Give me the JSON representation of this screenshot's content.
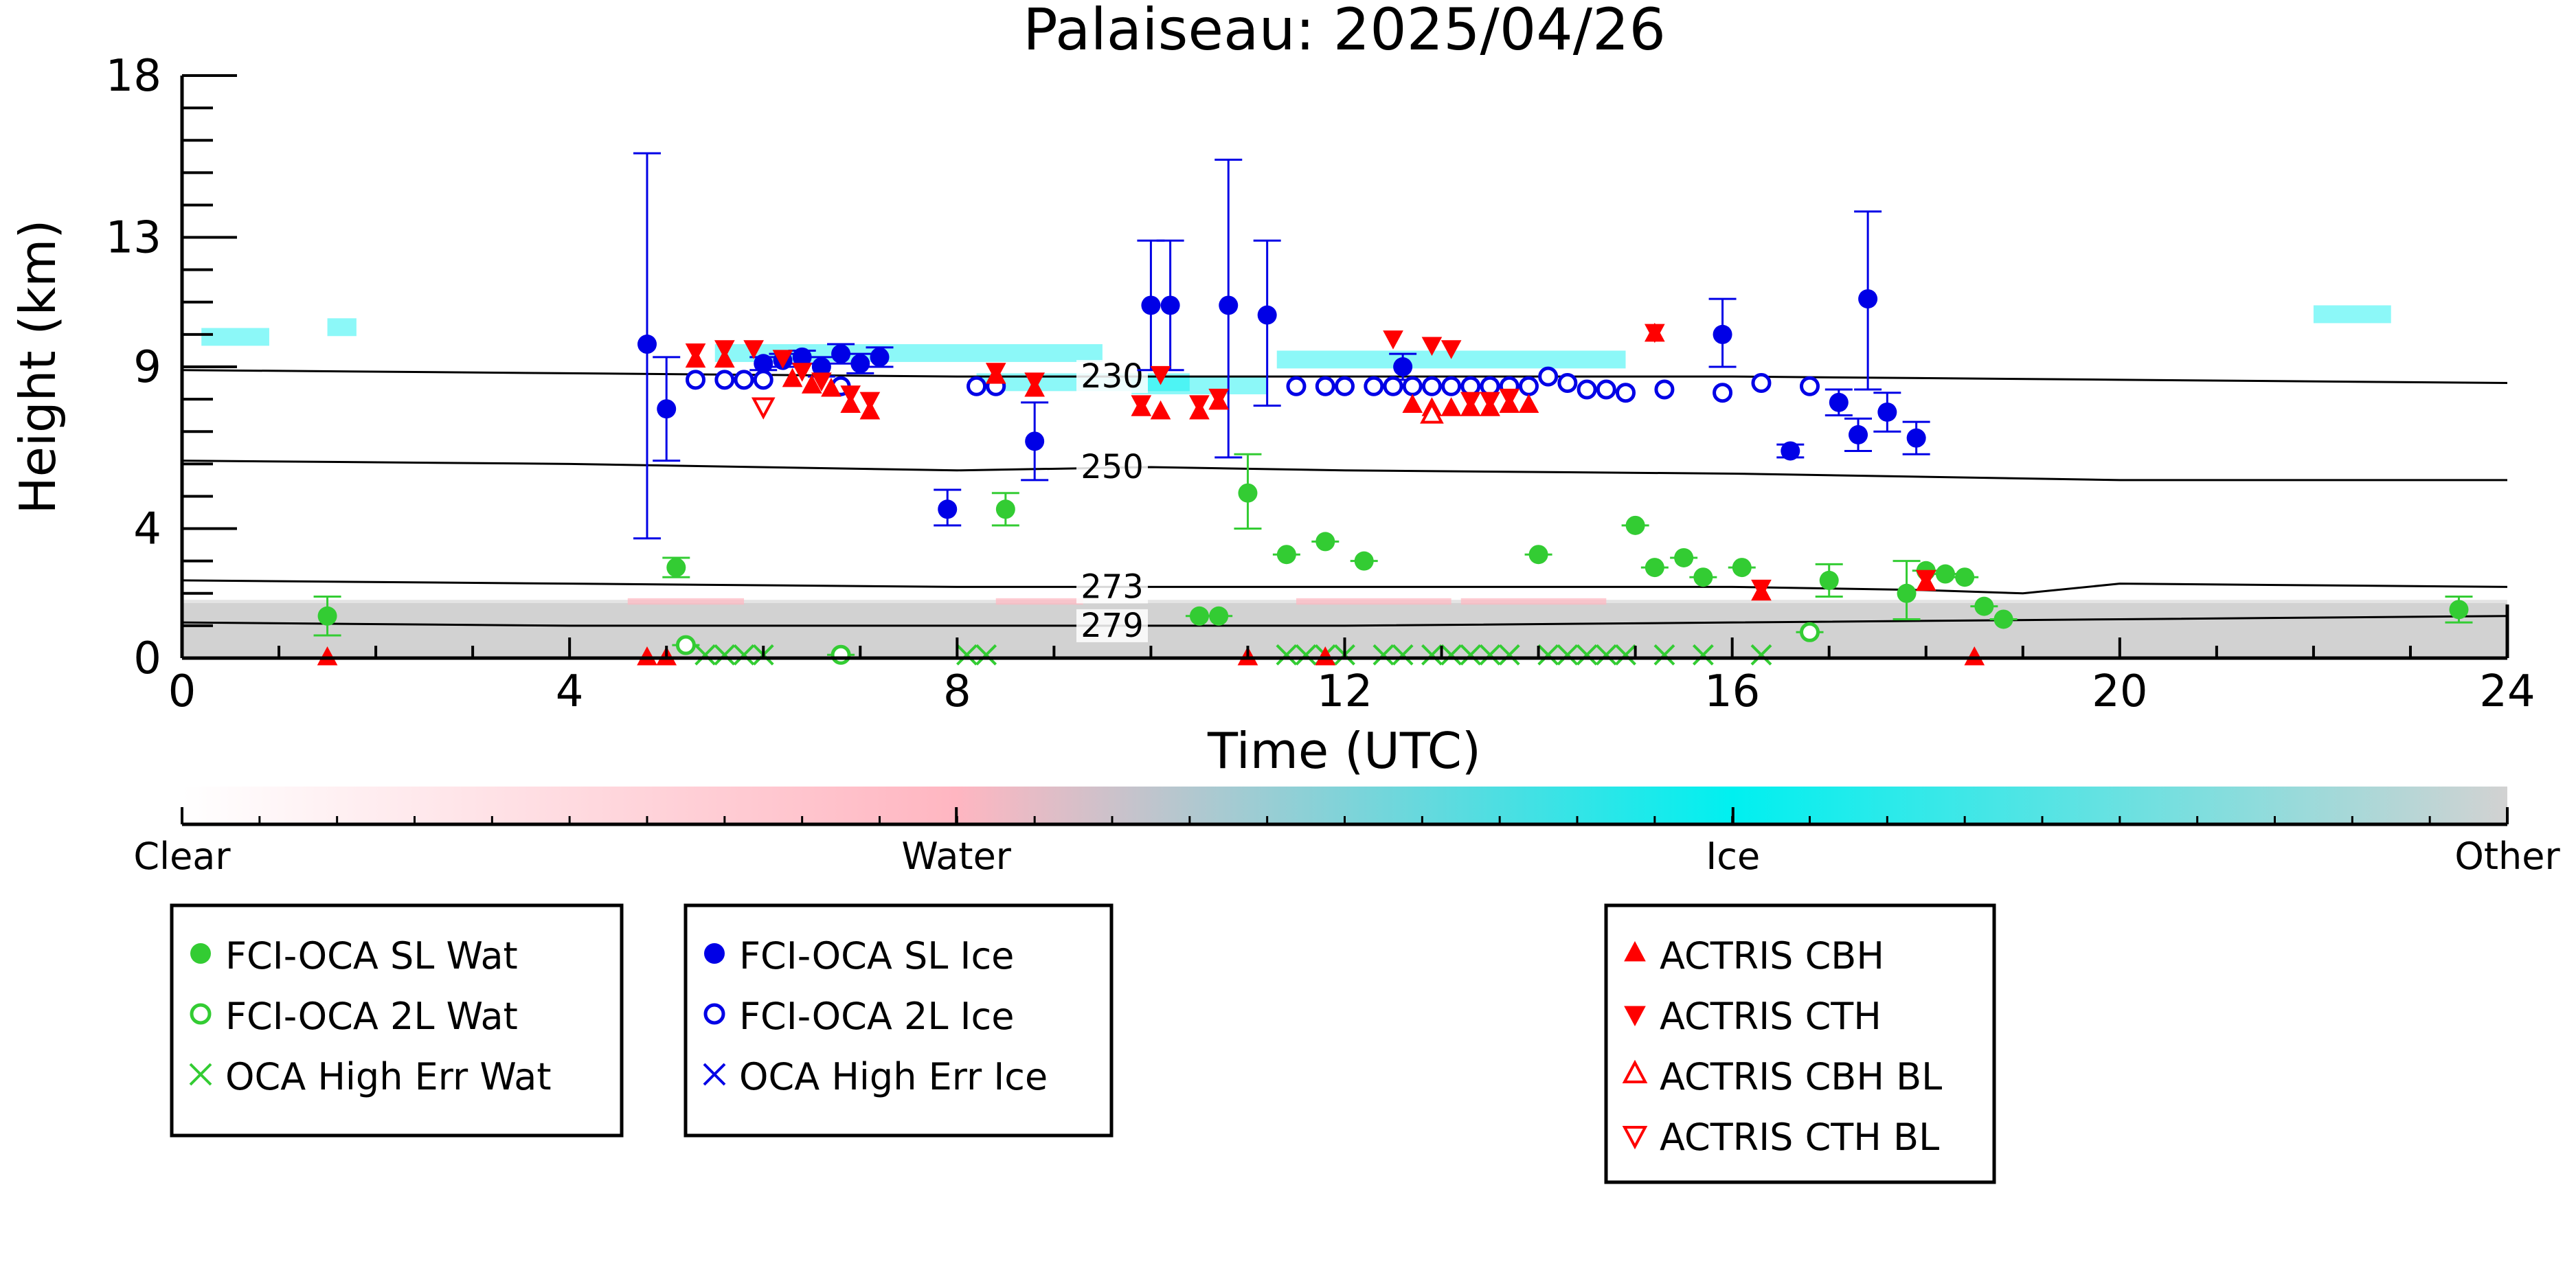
{
  "chart_data": {
    "type": "scatter",
    "title": "Palaiseau: 2025/04/26",
    "xlabel": "Time (UTC)",
    "ylabel": "Height (km)",
    "xlim": [
      0,
      24
    ],
    "ylim": [
      0,
      18
    ],
    "xticks": [
      0,
      4,
      8,
      12,
      16,
      20,
      24
    ],
    "yticks": [
      0,
      4,
      9,
      13,
      18
    ],
    "colors": {
      "green": "#33cc33",
      "blue": "#0000e6",
      "red": "#ff0000",
      "cyan": "#00f0f0",
      "gray": "#d2d2d2",
      "pink": "#ffb6c1"
    },
    "colorbar": {
      "labels": [
        "Clear",
        "Water",
        "Ice",
        "Other"
      ],
      "positions": [
        0,
        0.333,
        0.667,
        1
      ]
    },
    "contours": [
      {
        "label": "230",
        "points": [
          [
            0,
            8.9
          ],
          [
            4,
            8.8
          ],
          [
            8,
            8.7
          ],
          [
            10,
            8.7
          ],
          [
            12,
            8.7
          ],
          [
            16,
            8.7
          ],
          [
            20,
            8.6
          ],
          [
            24,
            8.5
          ]
        ]
      },
      {
        "label": "250",
        "points": [
          [
            0,
            6.1
          ],
          [
            4,
            6.0
          ],
          [
            8,
            5.8
          ],
          [
            10,
            5.9
          ],
          [
            12,
            5.8
          ],
          [
            16,
            5.7
          ],
          [
            20,
            5.5
          ],
          [
            24,
            5.5
          ]
        ]
      },
      {
        "label": "273",
        "points": [
          [
            0,
            2.4
          ],
          [
            4,
            2.3
          ],
          [
            8,
            2.2
          ],
          [
            10,
            2.2
          ],
          [
            12,
            2.2
          ],
          [
            16,
            2.2
          ],
          [
            18,
            2.1
          ],
          [
            19,
            2.0
          ],
          [
            20,
            2.3
          ],
          [
            24,
            2.2
          ]
        ]
      },
      {
        "label": "279",
        "points": [
          [
            0,
            1.1
          ],
          [
            4,
            1.0
          ],
          [
            8,
            1.0
          ],
          [
            10,
            1.0
          ],
          [
            12,
            1.0
          ],
          [
            16,
            1.1
          ],
          [
            20,
            1.2
          ],
          [
            24,
            1.3
          ]
        ]
      }
    ],
    "series": [
      {
        "name": "FCI-OCA SL Wat",
        "marker": "filled-circle",
        "color": "#33cc33",
        "points": [
          {
            "x": 1.5,
            "y": 1.3,
            "lo": 0.7,
            "hi": 1.9
          },
          {
            "x": 5.1,
            "y": 2.8,
            "lo": 2.5,
            "hi": 3.1
          },
          {
            "x": 8.5,
            "y": 4.6,
            "lo": 4.1,
            "hi": 5.1
          },
          {
            "x": 10.5,
            "y": 1.3,
            "lo": 1.3,
            "hi": 1.3
          },
          {
            "x": 10.7,
            "y": 1.3,
            "lo": 1.3,
            "hi": 1.3
          },
          {
            "x": 11.0,
            "y": 5.1,
            "lo": 4.0,
            "hi": 6.3
          },
          {
            "x": 11.4,
            "y": 3.2,
            "lo": 3.2,
            "hi": 3.2
          },
          {
            "x": 11.8,
            "y": 3.6,
            "lo": 3.6,
            "hi": 3.6
          },
          {
            "x": 12.2,
            "y": 3.0,
            "lo": 3.0,
            "hi": 3.0
          },
          {
            "x": 14.0,
            "y": 3.2,
            "lo": 3.2,
            "hi": 3.2
          },
          {
            "x": 15.0,
            "y": 4.1,
            "lo": 4.1,
            "hi": 4.1
          },
          {
            "x": 15.2,
            "y": 2.8,
            "lo": 2.8,
            "hi": 2.8
          },
          {
            "x": 15.5,
            "y": 3.1,
            "lo": 3.1,
            "hi": 3.1
          },
          {
            "x": 15.7,
            "y": 2.5,
            "lo": 2.5,
            "hi": 2.5
          },
          {
            "x": 16.1,
            "y": 2.8,
            "lo": 2.8,
            "hi": 2.8
          },
          {
            "x": 17.0,
            "y": 2.4,
            "lo": 1.9,
            "hi": 2.9
          },
          {
            "x": 17.8,
            "y": 2.0,
            "lo": 1.2,
            "hi": 3.0
          },
          {
            "x": 18.0,
            "y": 2.7,
            "lo": 2.7,
            "hi": 2.7
          },
          {
            "x": 18.2,
            "y": 2.6,
            "lo": 2.6,
            "hi": 2.6
          },
          {
            "x": 18.4,
            "y": 2.5,
            "lo": 2.5,
            "hi": 2.5
          },
          {
            "x": 18.6,
            "y": 1.6,
            "lo": 1.6,
            "hi": 1.6
          },
          {
            "x": 18.8,
            "y": 1.2,
            "lo": 1.2,
            "hi": 1.2
          },
          {
            "x": 23.5,
            "y": 1.5,
            "lo": 1.1,
            "hi": 1.9
          }
        ]
      },
      {
        "name": "FCI-OCA 2L Wat",
        "marker": "open-circle",
        "color": "#33cc33",
        "points": [
          {
            "x": 5.2,
            "y": 0.4,
            "lo": 0.4,
            "hi": 0.4
          },
          {
            "x": 6.8,
            "y": 0.1,
            "lo": 0.1,
            "hi": 0.1
          },
          {
            "x": 16.8,
            "y": 0.8,
            "lo": 0.8,
            "hi": 0.8
          }
        ]
      },
      {
        "name": "OCA High Err Wat",
        "marker": "cross",
        "color": "#33cc33",
        "points": [
          {
            "x": 5.4,
            "y": 0.1
          },
          {
            "x": 5.6,
            "y": 0.1
          },
          {
            "x": 5.8,
            "y": 0.1
          },
          {
            "x": 6.0,
            "y": 0.1
          },
          {
            "x": 8.1,
            "y": 0.1
          },
          {
            "x": 8.3,
            "y": 0.1
          },
          {
            "x": 11.4,
            "y": 0.1
          },
          {
            "x": 11.6,
            "y": 0.1
          },
          {
            "x": 11.8,
            "y": 0.1
          },
          {
            "x": 12.0,
            "y": 0.1
          },
          {
            "x": 12.4,
            "y": 0.1
          },
          {
            "x": 12.6,
            "y": 0.1
          },
          {
            "x": 12.9,
            "y": 0.1
          },
          {
            "x": 13.1,
            "y": 0.1
          },
          {
            "x": 13.3,
            "y": 0.1
          },
          {
            "x": 13.5,
            "y": 0.1
          },
          {
            "x": 13.7,
            "y": 0.1
          },
          {
            "x": 14.1,
            "y": 0.1
          },
          {
            "x": 14.3,
            "y": 0.1
          },
          {
            "x": 14.5,
            "y": 0.1
          },
          {
            "x": 14.7,
            "y": 0.1
          },
          {
            "x": 14.9,
            "y": 0.1
          },
          {
            "x": 15.3,
            "y": 0.1
          },
          {
            "x": 15.7,
            "y": 0.1
          },
          {
            "x": 16.3,
            "y": 0.1
          }
        ]
      },
      {
        "name": "FCI-OCA SL Ice",
        "marker": "filled-circle",
        "color": "#0000e6",
        "points": [
          {
            "x": 4.8,
            "y": 9.7,
            "lo": 3.7,
            "hi": 15.6
          },
          {
            "x": 5.0,
            "y": 7.7,
            "lo": 6.1,
            "hi": 9.3
          },
          {
            "x": 6.0,
            "y": 9.1,
            "lo": 8.9,
            "hi": 9.3
          },
          {
            "x": 6.2,
            "y": 9.2,
            "lo": 9.0,
            "hi": 9.4
          },
          {
            "x": 6.4,
            "y": 9.3,
            "lo": 9.1,
            "hi": 9.5
          },
          {
            "x": 6.6,
            "y": 9.0,
            "lo": 8.7,
            "hi": 9.3
          },
          {
            "x": 6.8,
            "y": 9.4,
            "lo": 9.1,
            "hi": 9.7
          },
          {
            "x": 7.0,
            "y": 9.1,
            "lo": 8.8,
            "hi": 9.4
          },
          {
            "x": 7.2,
            "y": 9.3,
            "lo": 9.0,
            "hi": 9.6
          },
          {
            "x": 7.9,
            "y": 4.6,
            "lo": 4.1,
            "hi": 5.2
          },
          {
            "x": 8.8,
            "y": 6.7,
            "lo": 5.5,
            "hi": 7.9
          },
          {
            "x": 10.0,
            "y": 10.9,
            "lo": 8.9,
            "hi": 12.9
          },
          {
            "x": 10.2,
            "y": 10.9,
            "lo": 8.9,
            "hi": 12.9
          },
          {
            "x": 10.8,
            "y": 10.9,
            "lo": 6.2,
            "hi": 15.4
          },
          {
            "x": 11.2,
            "y": 10.6,
            "lo": 7.8,
            "hi": 12.9
          },
          {
            "x": 12.6,
            "y": 9.0,
            "lo": 8.6,
            "hi": 9.4
          },
          {
            "x": 15.9,
            "y": 10.0,
            "lo": 9.0,
            "hi": 11.1
          },
          {
            "x": 16.6,
            "y": 6.4,
            "lo": 6.2,
            "hi": 6.6
          },
          {
            "x": 17.1,
            "y": 7.9,
            "lo": 7.5,
            "hi": 8.3
          },
          {
            "x": 17.3,
            "y": 6.9,
            "lo": 6.4,
            "hi": 7.4
          },
          {
            "x": 17.4,
            "y": 11.1,
            "lo": 8.3,
            "hi": 13.8
          },
          {
            "x": 17.6,
            "y": 7.6,
            "lo": 7.0,
            "hi": 8.2
          },
          {
            "x": 17.9,
            "y": 6.8,
            "lo": 6.3,
            "hi": 7.3
          }
        ]
      },
      {
        "name": "FCI-OCA 2L Ice",
        "marker": "open-circle",
        "color": "#0000e6",
        "points": [
          {
            "x": 5.3,
            "y": 8.6
          },
          {
            "x": 5.6,
            "y": 8.6
          },
          {
            "x": 5.8,
            "y": 8.6
          },
          {
            "x": 6.0,
            "y": 8.6
          },
          {
            "x": 6.8,
            "y": 8.4
          },
          {
            "x": 8.2,
            "y": 8.4
          },
          {
            "x": 8.4,
            "y": 8.4
          },
          {
            "x": 11.5,
            "y": 8.4
          },
          {
            "x": 11.8,
            "y": 8.4
          },
          {
            "x": 12.0,
            "y": 8.4
          },
          {
            "x": 12.3,
            "y": 8.4
          },
          {
            "x": 12.5,
            "y": 8.4
          },
          {
            "x": 12.7,
            "y": 8.4
          },
          {
            "x": 12.9,
            "y": 8.4
          },
          {
            "x": 13.1,
            "y": 8.4
          },
          {
            "x": 13.3,
            "y": 8.4
          },
          {
            "x": 13.5,
            "y": 8.4
          },
          {
            "x": 13.7,
            "y": 8.4
          },
          {
            "x": 13.9,
            "y": 8.4
          },
          {
            "x": 14.1,
            "y": 8.7
          },
          {
            "x": 14.3,
            "y": 8.5
          },
          {
            "x": 14.5,
            "y": 8.3
          },
          {
            "x": 14.7,
            "y": 8.3
          },
          {
            "x": 14.9,
            "y": 8.2
          },
          {
            "x": 15.3,
            "y": 8.3
          },
          {
            "x": 15.9,
            "y": 8.2
          },
          {
            "x": 16.3,
            "y": 8.5
          },
          {
            "x": 16.8,
            "y": 8.4
          }
        ]
      },
      {
        "name": "OCA High Err Ice",
        "marker": "cross",
        "color": "#0000e6",
        "points": []
      },
      {
        "name": "ACTRIS CBH",
        "marker": "triangle-up",
        "color": "#ff0000",
        "points": [
          {
            "x": 5.3,
            "y": 9.2
          },
          {
            "x": 5.6,
            "y": 9.2
          },
          {
            "x": 6.3,
            "y": 8.6
          },
          {
            "x": 6.5,
            "y": 8.4
          },
          {
            "x": 6.7,
            "y": 8.3
          },
          {
            "x": 6.9,
            "y": 7.8
          },
          {
            "x": 7.1,
            "y": 7.6
          },
          {
            "x": 8.4,
            "y": 8.7
          },
          {
            "x": 8.8,
            "y": 8.3
          },
          {
            "x": 9.9,
            "y": 7.7
          },
          {
            "x": 10.1,
            "y": 7.6
          },
          {
            "x": 10.5,
            "y": 7.6
          },
          {
            "x": 10.7,
            "y": 7.9
          },
          {
            "x": 12.7,
            "y": 7.8
          },
          {
            "x": 12.9,
            "y": 7.7
          },
          {
            "x": 13.1,
            "y": 7.7
          },
          {
            "x": 13.3,
            "y": 7.7
          },
          {
            "x": 13.5,
            "y": 7.7
          },
          {
            "x": 13.7,
            "y": 7.8
          },
          {
            "x": 13.9,
            "y": 7.8
          },
          {
            "x": 15.2,
            "y": 10.0
          },
          {
            "x": 16.3,
            "y": 2.0
          },
          {
            "x": 18.0,
            "y": 2.3
          },
          {
            "x": 1.5,
            "y": 0.0
          },
          {
            "x": 4.8,
            "y": 0.0
          },
          {
            "x": 5.0,
            "y": 0.0
          },
          {
            "x": 11.0,
            "y": 0.0
          },
          {
            "x": 11.8,
            "y": 0.0
          },
          {
            "x": 18.5,
            "y": 0.0
          }
        ]
      },
      {
        "name": "ACTRIS CTH",
        "marker": "triangle-down",
        "color": "#ff0000",
        "points": [
          {
            "x": 5.3,
            "y": 9.5
          },
          {
            "x": 5.6,
            "y": 9.6
          },
          {
            "x": 5.9,
            "y": 9.6
          },
          {
            "x": 6.2,
            "y": 9.3
          },
          {
            "x": 6.4,
            "y": 8.9
          },
          {
            "x": 6.6,
            "y": 8.6
          },
          {
            "x": 6.9,
            "y": 8.2
          },
          {
            "x": 7.1,
            "y": 8.0
          },
          {
            "x": 8.4,
            "y": 8.9
          },
          {
            "x": 8.8,
            "y": 8.6
          },
          {
            "x": 9.9,
            "y": 7.9
          },
          {
            "x": 10.1,
            "y": 8.8
          },
          {
            "x": 10.5,
            "y": 7.9
          },
          {
            "x": 10.7,
            "y": 8.1
          },
          {
            "x": 12.5,
            "y": 9.9
          },
          {
            "x": 12.9,
            "y": 9.7
          },
          {
            "x": 13.1,
            "y": 9.6
          },
          {
            "x": 13.3,
            "y": 8.0
          },
          {
            "x": 13.5,
            "y": 8.0
          },
          {
            "x": 13.7,
            "y": 8.1
          },
          {
            "x": 15.2,
            "y": 10.1
          },
          {
            "x": 16.3,
            "y": 2.2
          },
          {
            "x": 18.0,
            "y": 2.5
          }
        ]
      },
      {
        "name": "ACTRIS CBH BL",
        "marker": "open-triangle-up",
        "color": "#ff0000",
        "points": [
          {
            "x": 12.9,
            "y": 7.5
          }
        ]
      },
      {
        "name": "ACTRIS CTH BL",
        "marker": "open-triangle-down",
        "color": "#ff0000",
        "points": [
          {
            "x": 6.0,
            "y": 7.8
          }
        ]
      }
    ],
    "legend": {
      "placement": "bottom",
      "groups": [
        [
          "FCI-OCA SL Wat",
          "FCI-OCA 2L Wat",
          "OCA High Err Wat"
        ],
        [
          "FCI-OCA SL Ice",
          "FCI-OCA 2L Ice",
          "OCA High Err Ice"
        ],
        [
          "ACTRIS CBH",
          "ACTRIS CTH",
          "ACTRIS CBH BL",
          "ACTRIS CTH BL"
        ]
      ]
    }
  }
}
